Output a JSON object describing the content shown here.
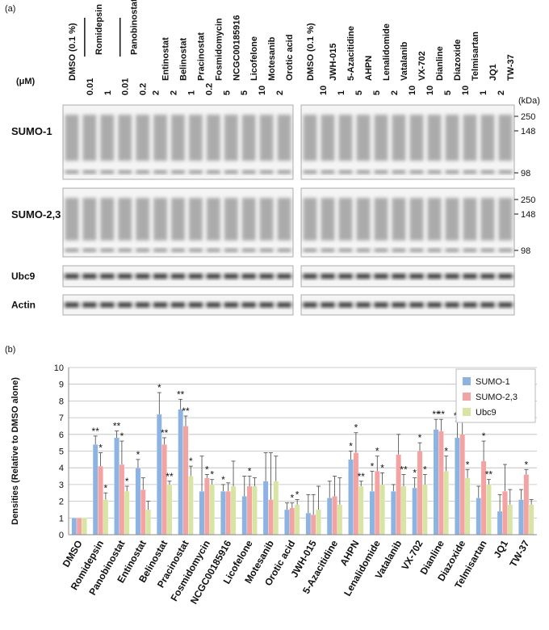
{
  "panel_a": {
    "label": "(a)",
    "unit": "(μM)",
    "kda": "(kDa)",
    "left_lanes": [
      {
        "name": "DMSO (0.1 %)",
        "doses": []
      },
      {
        "name": "Romidepsin",
        "doses": [
          "0.01",
          "1"
        ]
      },
      {
        "name": "Panobinostat",
        "doses": [
          "0.01",
          "0.2"
        ]
      },
      {
        "name": "Entinostat",
        "doses": [
          "2"
        ]
      },
      {
        "name": "Belinostat",
        "doses": [
          "2"
        ]
      },
      {
        "name": "Pracinostat",
        "doses": [
          "1"
        ]
      },
      {
        "name": "Fosmidomycin",
        "doses": [
          "0.2"
        ]
      },
      {
        "name": "NCGC00185916",
        "doses": [
          "5"
        ]
      },
      {
        "name": "Licofelone",
        "doses": [
          "5"
        ]
      },
      {
        "name": "Motesanib",
        "doses": [
          "10"
        ]
      },
      {
        "name": "Orotic acid",
        "doses": [
          "2"
        ]
      }
    ],
    "right_lanes": [
      {
        "name": "DMSO (0.1 %)",
        "doses": []
      },
      {
        "name": "JWH-015",
        "doses": [
          "10"
        ]
      },
      {
        "name": "5-Azacitidine",
        "doses": [
          "1"
        ]
      },
      {
        "name": "AHPN",
        "doses": [
          "5"
        ]
      },
      {
        "name": "Lenalidomide",
        "doses": [
          "5"
        ]
      },
      {
        "name": "Vatalanib",
        "doses": [
          "2"
        ]
      },
      {
        "name": "VX-702",
        "doses": [
          "10"
        ]
      },
      {
        "name": "Dianline",
        "doses": [
          "10"
        ]
      },
      {
        "name": "Diazoxide",
        "doses": [
          "5"
        ]
      },
      {
        "name": "Telmisartan",
        "doses": [
          "10"
        ]
      },
      {
        "name": "JQ1",
        "doses": [
          "1"
        ]
      },
      {
        "name": "TW-37",
        "doses": [
          "2"
        ]
      }
    ],
    "rows": [
      {
        "label": "SUMO-1",
        "markers": [
          "250",
          "148",
          "98"
        ]
      },
      {
        "label": "SUMO-2,3",
        "markers": [
          "250",
          "148",
          "98"
        ]
      },
      {
        "label": "Ubc9",
        "markers": []
      },
      {
        "label": "Actin",
        "markers": []
      }
    ]
  },
  "chart_data": {
    "type": "bar",
    "label": "(b)",
    "y_label": "Densities (Relative to DMSO alone)",
    "categories": [
      "DMSO",
      "Romidepsin",
      "Panobinostat",
      "Entinostat",
      "Belinostat",
      "Pracinostat",
      "Fosmidomycin",
      "NCGC00185916",
      "Licofelone",
      "Motesanib",
      "Orotic acid",
      "JWH-015",
      "5-Azacitidine",
      "AHPN",
      "Lenalidomide",
      "Vatalanib",
      "VX-702",
      "Dianline",
      "Diazoxide",
      "Telmisartan",
      "JQ1",
      "TW-37"
    ],
    "series": [
      {
        "name": "SUMO-1",
        "color": "#8db3e2",
        "values": [
          1,
          5.4,
          5.8,
          4.0,
          7.2,
          7.5,
          2.6,
          2.6,
          2.3,
          3.2,
          1.5,
          1.3,
          2.2,
          4.5,
          2.6,
          2.6,
          2.8,
          6.3,
          5.8,
          2.2,
          1.4,
          2.1
        ],
        "errors": [
          0,
          0.5,
          0.4,
          0.5,
          1.3,
          0.6,
          2.1,
          0.4,
          1.2,
          1.7,
          0.4,
          1.1,
          1.0,
          0.5,
          1.2,
          0.4,
          0.6,
          0.6,
          1.0,
          0.7,
          1.0,
          0.6
        ],
        "significance": [
          null,
          "**",
          "**",
          "*",
          "*",
          "**",
          null,
          "*",
          null,
          null,
          null,
          null,
          null,
          "*",
          "*",
          null,
          "*",
          "**",
          "**",
          null,
          null,
          null
        ]
      },
      {
        "name": "SUMO-2,3",
        "color": "#f4a3a3",
        "values": [
          1,
          4.1,
          4.2,
          2.7,
          5.4,
          6.5,
          3.4,
          2.6,
          2.9,
          2.1,
          1.6,
          1.2,
          2.3,
          4.9,
          3.8,
          4.8,
          5.0,
          6.2,
          6.0,
          4.4,
          2.6,
          3.6
        ],
        "errors": [
          0,
          0.8,
          1.4,
          0.7,
          0.4,
          0.6,
          0.2,
          0.5,
          0.6,
          2.8,
          0.3,
          1.2,
          1.2,
          1.2,
          0.9,
          1.2,
          0.5,
          0.7,
          0.8,
          1.2,
          1.6,
          0.3
        ],
        "significance": [
          null,
          "*",
          "*",
          null,
          "**",
          "**",
          "*",
          null,
          "*",
          null,
          "*",
          null,
          null,
          "*",
          "*",
          null,
          "*",
          "**",
          "**",
          "*",
          null,
          "*"
        ]
      },
      {
        "name": "Ubc9",
        "color": "#d7e4a4",
        "values": [
          1,
          2.1,
          2.6,
          1.5,
          3.0,
          3.5,
          3.0,
          2.9,
          2.9,
          3.2,
          1.8,
          1.5,
          1.8,
          2.9,
          3.0,
          2.9,
          3.0,
          3.8,
          3.4,
          3.0,
          1.8,
          1.8
        ],
        "errors": [
          0,
          0.4,
          0.3,
          0.5,
          0.2,
          0.6,
          0.3,
          1.5,
          0.5,
          1.5,
          0.3,
          1.4,
          1.6,
          0.3,
          0.7,
          0.7,
          0.6,
          0.9,
          0.5,
          0.3,
          0.9,
          0.3
        ],
        "significance": [
          null,
          "*",
          "*",
          null,
          "**",
          "*",
          "*",
          null,
          null,
          null,
          "*",
          null,
          null,
          "**",
          "*",
          "**",
          "*",
          "*",
          "*",
          "**",
          null,
          null
        ]
      }
    ],
    "ylim": [
      0,
      10
    ],
    "yticks": [
      0,
      1,
      2,
      3,
      4,
      5,
      6,
      7,
      8,
      9,
      10
    ],
    "grid": true,
    "legend": "top-right"
  }
}
